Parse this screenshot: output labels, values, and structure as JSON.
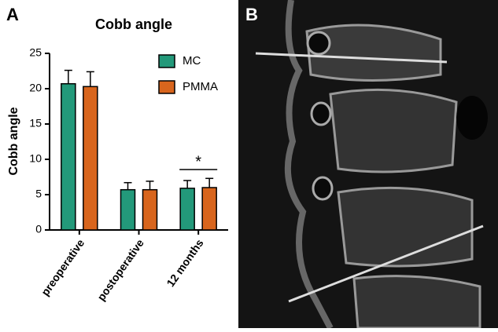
{
  "panel_labels": [
    "A",
    "B"
  ],
  "chart_data": {
    "type": "bar",
    "title": "Cobb angle",
    "y_label": "Cobb angle",
    "categories": [
      "preoperative",
      "postoperative",
      "12 months"
    ],
    "series": [
      {
        "name": "MC",
        "color": "#23997a",
        "values": [
          20.7,
          5.7,
          5.9
        ],
        "errors": [
          1.9,
          1.0,
          1.1
        ]
      },
      {
        "name": "PMMA",
        "color": "#d8651d",
        "values": [
          20.3,
          5.7,
          6.0
        ],
        "errors": [
          2.1,
          1.2,
          1.3
        ]
      }
    ],
    "ylim": [
      0,
      25
    ],
    "yticks": [
      0,
      5,
      10,
      15,
      20,
      25
    ],
    "legend": "top-right",
    "annotation": "*"
  }
}
